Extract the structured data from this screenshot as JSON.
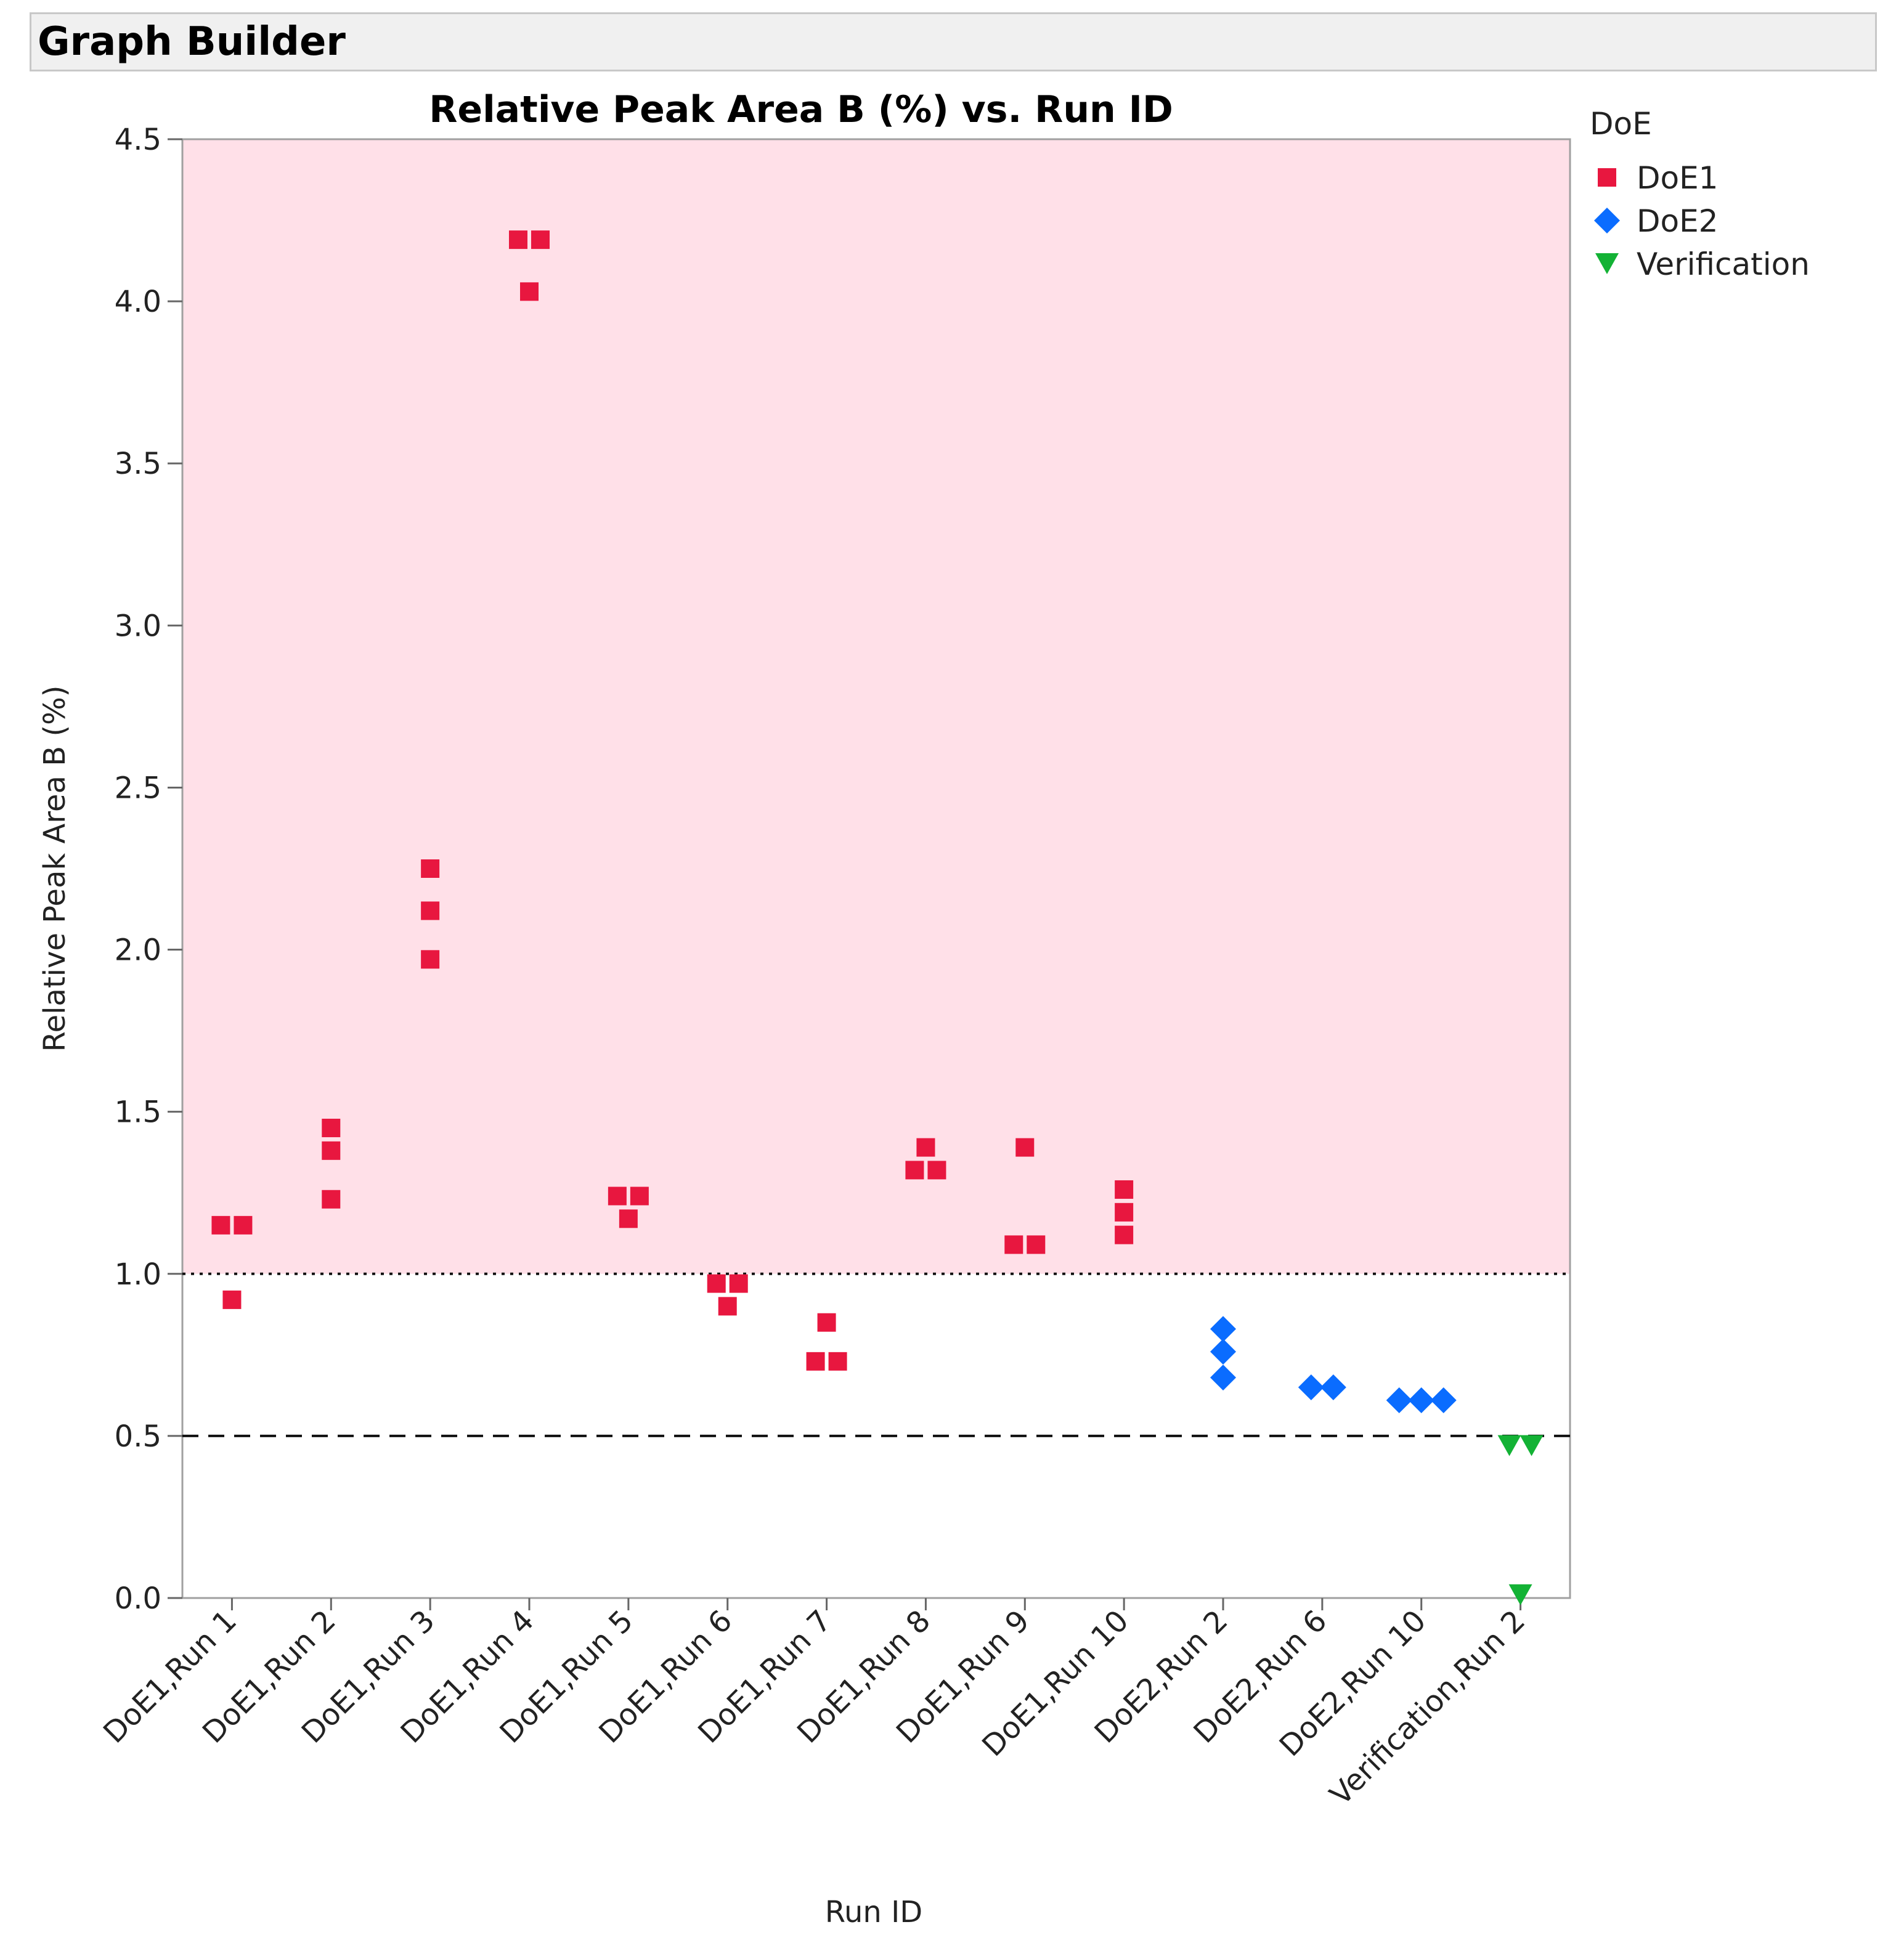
{
  "window": {
    "title": "Graph Builder"
  },
  "chart_data": {
    "type": "scatter",
    "title": "Relative Peak Area B (%)  vs. Run ID",
    "xlabel": "Run ID",
    "ylabel": "Relative Peak Area B (%)",
    "ylim": [
      0,
      4.5
    ],
    "yticks": [
      "0.0",
      "0.5",
      "1.0",
      "1.5",
      "2.0",
      "2.5",
      "3.0",
      "3.5",
      "4.0",
      "4.5"
    ],
    "categories": [
      "DoE1,Run 1",
      "DoE1,Run 2",
      "DoE1,Run 3",
      "DoE1,Run 4",
      "DoE1,Run 5",
      "DoE1,Run 6",
      "DoE1,Run 7",
      "DoE1,Run 8",
      "DoE1,Run 9",
      "DoE1,Run 10",
      "DoE2,Run 2",
      "DoE2,Run 6",
      "DoE2,Run 10",
      "Verification,Run 2"
    ],
    "shaded_region": {
      "from": 1.0,
      "to": 4.5,
      "color": "#ffe0e8"
    },
    "reference_lines": [
      {
        "value": 1.0,
        "style": "dotted"
      },
      {
        "value": 0.5,
        "style": "dashed"
      }
    ],
    "legend": {
      "title": "DoE",
      "position": "top-right"
    },
    "series": [
      {
        "name": "DoE1",
        "marker": "square",
        "color": "#e8173f",
        "points": [
          {
            "category": "DoE1,Run 1",
            "values": [
              1.15,
              1.15,
              0.92
            ]
          },
          {
            "category": "DoE1,Run 2",
            "values": [
              1.45,
              1.38,
              1.23
            ]
          },
          {
            "category": "DoE1,Run 3",
            "values": [
              2.25,
              2.12,
              1.97
            ]
          },
          {
            "category": "DoE1,Run 4",
            "values": [
              4.19,
              4.19,
              4.03
            ]
          },
          {
            "category": "DoE1,Run 5",
            "values": [
              1.24,
              1.24,
              1.17
            ]
          },
          {
            "category": "DoE1,Run 6",
            "values": [
              0.97,
              0.97,
              0.9
            ]
          },
          {
            "category": "DoE1,Run 7",
            "values": [
              0.85,
              0.73,
              0.73
            ]
          },
          {
            "category": "DoE1,Run 8",
            "values": [
              1.39,
              1.32,
              1.32
            ]
          },
          {
            "category": "DoE1,Run 9",
            "values": [
              1.39,
              1.09,
              1.09
            ]
          },
          {
            "category": "DoE1,Run 10",
            "values": [
              1.26,
              1.19,
              1.12
            ]
          }
        ]
      },
      {
        "name": "DoE2",
        "marker": "diamond",
        "color": "#0a6cff",
        "points": [
          {
            "category": "DoE2,Run 2",
            "values": [
              0.83,
              0.76,
              0.68
            ]
          },
          {
            "category": "DoE2,Run 6",
            "values": [
              0.65,
              0.65
            ]
          },
          {
            "category": "DoE2,Run 10",
            "values": [
              0.61,
              0.61,
              0.61
            ]
          }
        ]
      },
      {
        "name": "Verification",
        "marker": "triangle-down",
        "color": "#13b235",
        "points": [
          {
            "category": "Verification,Run 2",
            "values": [
              0.47,
              0.47,
              0.01
            ]
          }
        ]
      }
    ]
  }
}
